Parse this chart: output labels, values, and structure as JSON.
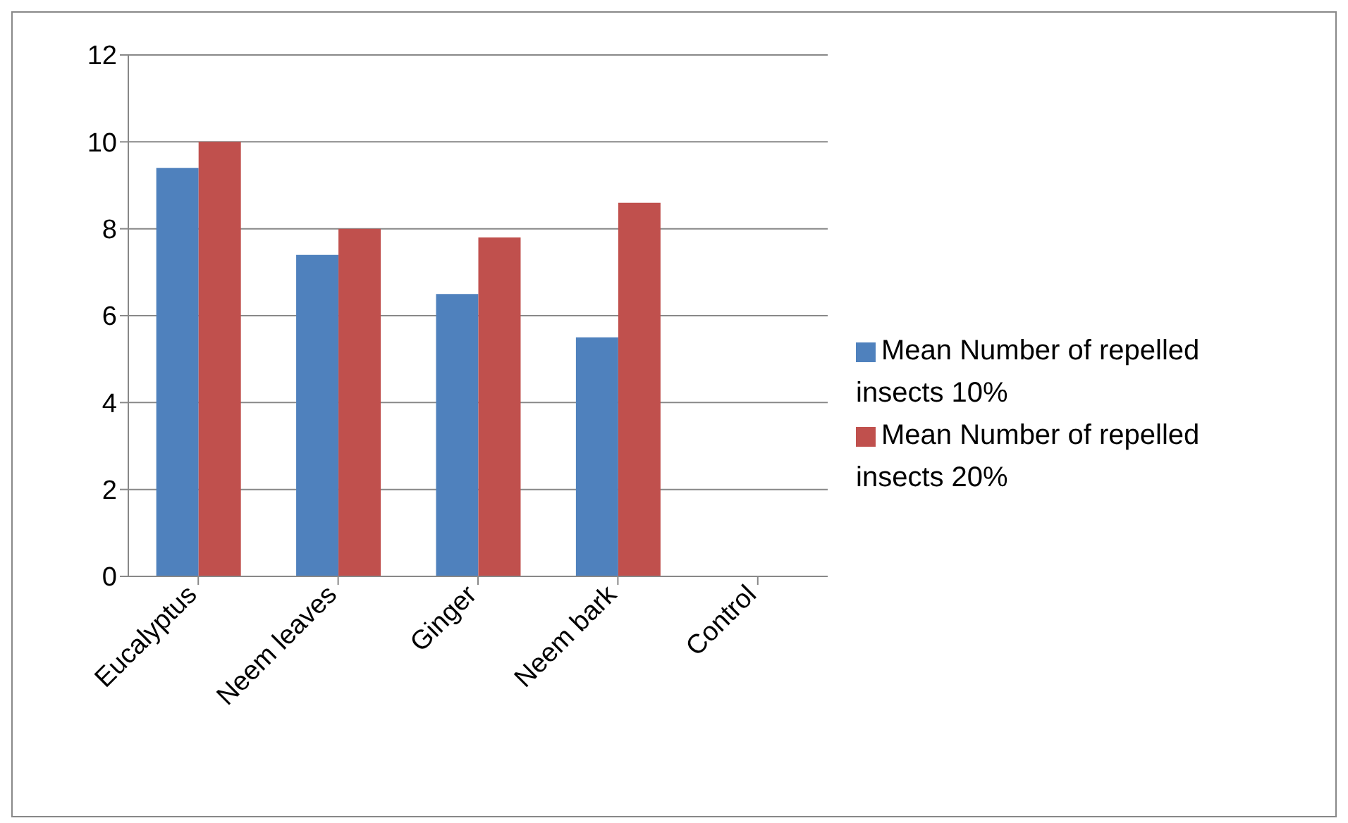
{
  "chart_data": {
    "type": "bar",
    "categories": [
      "Eucalyptus",
      "Neem leaves",
      "Ginger",
      "Neem bark",
      "Control"
    ],
    "series": [
      {
        "name": "Mean Number of repelled insects 10%",
        "color": "#4f81bd",
        "values": [
          9.4,
          7.4,
          6.5,
          5.5,
          0
        ]
      },
      {
        "name": "Mean Number of repelled insects 20%",
        "color": "#c0504d",
        "values": [
          10,
          8,
          7.8,
          8.6,
          0
        ]
      }
    ],
    "ylim": [
      0,
      12
    ],
    "yticks": [
      0,
      2,
      4,
      6,
      8,
      10,
      12
    ],
    "grid": "y",
    "legend": "right"
  }
}
